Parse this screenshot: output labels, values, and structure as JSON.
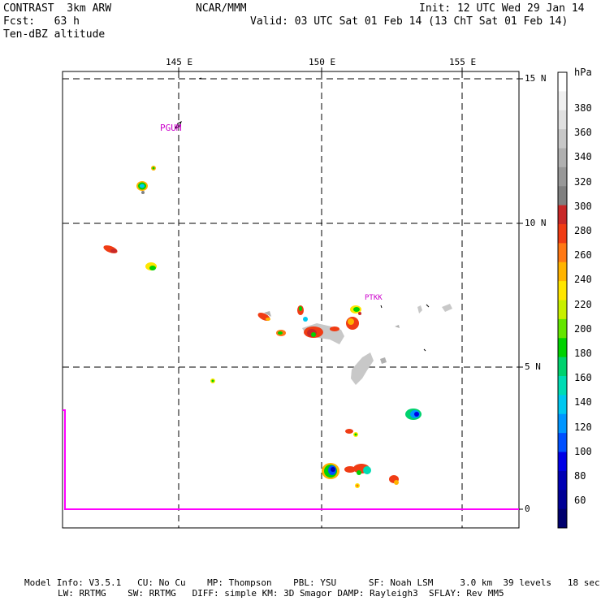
{
  "header": {
    "left1": "CONTRAST  3km ARW",
    "left2": "Fcst:   63 h",
    "left3": "Ten-dBZ altitude",
    "center": "NCAR/MMM",
    "right1": "Init: 12 UTC Wed 29 Jan 14",
    "right2": "Valid: 03 UTC Sat 01 Feb 14 (13 ChT Sat 01 Feb 14)"
  },
  "map": {
    "lon_labels": [
      "145 E",
      "150 E",
      "155 E"
    ],
    "lat_labels": [
      "15 N",
      "10 N",
      "5 N",
      "0"
    ],
    "stations": [
      "PGUM",
      "PTKK"
    ],
    "station_color": "#cc00cc",
    "boundary_color": "#ff00ff"
  },
  "colorbar": {
    "unit": "hPa",
    "labels": [
      "380",
      "360",
      "340",
      "320",
      "300",
      "280",
      "260",
      "240",
      "220",
      "200",
      "180",
      "160",
      "140",
      "120",
      "100",
      "80",
      "60"
    ],
    "colors": [
      "#ffffff",
      "#f0f0f0",
      "#e0e0e0",
      "#c8c8c8",
      "#b0b0b0",
      "#989898",
      "#808080",
      "#c82828",
      "#f03c14",
      "#ff7814",
      "#ffb400",
      "#ffe600",
      "#c8f000",
      "#64e600",
      "#00d200",
      "#00d26e",
      "#00dcb4",
      "#00c8f0",
      "#0096ff",
      "#0050ff",
      "#0000e6",
      "#0000b4",
      "#000096",
      "#00006e"
    ]
  },
  "footer": {
    "line1": "Model Info: V3.5.1   CU: No Cu    MP: Thompson    PBL: YSU      SF: Noah LSM     3.0 km  39 levels   18 sec",
    "line2": "LW: RRTMG    SW: RRTMG   DIFF: simple KM: 3D Smagor DAMP: Rayleigh3  SFLAY: Rev MM5"
  }
}
